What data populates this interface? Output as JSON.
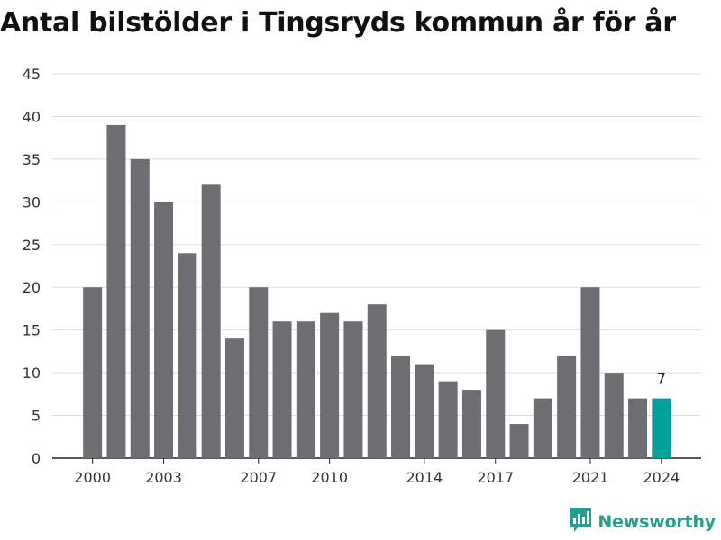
{
  "title": "Antal bilstölder i Tingsryds kommun år för år",
  "brand": {
    "name": "Newsworthy",
    "icon": "newsworthy-chart-logo"
  },
  "colors": {
    "bar": "#6e6d72",
    "highlight": "#00a19a",
    "grid": "#dddddd",
    "brand": "#2a9d8f"
  },
  "chart_data": {
    "type": "bar",
    "title": "Antal bilstölder i Tingsryds kommun år för år",
    "xlabel": "",
    "ylabel": "",
    "categories": [
      2000,
      2001,
      2002,
      2003,
      2004,
      2005,
      2006,
      2007,
      2008,
      2009,
      2010,
      2011,
      2012,
      2013,
      2014,
      2015,
      2016,
      2017,
      2018,
      2019,
      2020,
      2021,
      2022,
      2023,
      2024
    ],
    "values": [
      20,
      39,
      35,
      30,
      24,
      32,
      14,
      20,
      16,
      16,
      17,
      16,
      18,
      12,
      11,
      9,
      8,
      15,
      4,
      7,
      12,
      20,
      10,
      7,
      7
    ],
    "x_tick_labels": [
      "2000",
      "2003",
      "2007",
      "2010",
      "2014",
      "2017",
      "2021",
      "2024"
    ],
    "y_ticks": [
      0,
      5,
      10,
      15,
      20,
      25,
      30,
      35,
      40,
      45
    ],
    "ylim": [
      0,
      45
    ],
    "grid": true,
    "legend": "none",
    "highlight_category": 2024,
    "annotations": [
      {
        "category": 2024,
        "text": "7"
      }
    ]
  }
}
